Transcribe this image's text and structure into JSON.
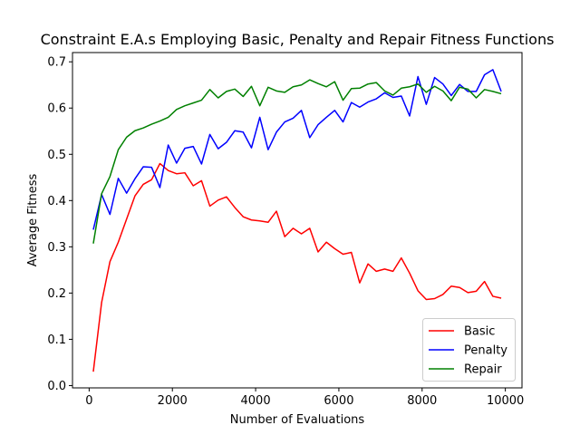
{
  "chart_data": {
    "type": "line",
    "title": "Constraint E.A.s Employing  Basic, Penalty and Repair Fitness Functions",
    "xlabel": "Number of Evaluations",
    "ylabel": "Average Fitness",
    "xlim": [
      -400,
      10400
    ],
    "ylim": [
      -0.005,
      0.72
    ],
    "xticks": [
      0,
      2000,
      4000,
      6000,
      8000,
      10000
    ],
    "xtick_labels": [
      "0",
      "2000",
      "4000",
      "6000",
      "8000",
      "10000"
    ],
    "yticks": [
      0.0,
      0.1,
      0.2,
      0.3,
      0.4,
      0.5,
      0.6,
      0.7
    ],
    "ytick_labels": [
      "0.0",
      "0.1",
      "0.2",
      "0.3",
      "0.4",
      "0.5",
      "0.6",
      "0.7"
    ],
    "grid": false,
    "legend_position": "bottom-right",
    "x": [
      100,
      300,
      500,
      700,
      900,
      1100,
      1300,
      1500,
      1700,
      1900,
      2100,
      2300,
      2500,
      2700,
      2900,
      3100,
      3300,
      3500,
      3700,
      3900,
      4100,
      4300,
      4500,
      4700,
      4900,
      5100,
      5300,
      5500,
      5700,
      5900,
      6100,
      6300,
      6500,
      6700,
      6900,
      7100,
      7300,
      7500,
      7700,
      7900,
      8100,
      8300,
      8500,
      8700,
      8900,
      9100,
      9300,
      9500,
      9700,
      9900
    ],
    "series": [
      {
        "name": "Basic",
        "color": "#ff0000",
        "values": [
          0.03,
          0.18,
          0.268,
          0.31,
          0.36,
          0.41,
          0.435,
          0.445,
          0.48,
          0.465,
          0.458,
          0.46,
          0.432,
          0.443,
          0.388,
          0.401,
          0.408,
          0.385,
          0.365,
          0.358,
          0.356,
          0.353,
          0.377,
          0.322,
          0.34,
          0.328,
          0.34,
          0.289,
          0.31,
          0.296,
          0.284,
          0.288,
          0.222,
          0.263,
          0.247,
          0.252,
          0.247,
          0.276,
          0.243,
          0.205,
          0.186,
          0.188,
          0.197,
          0.215,
          0.212,
          0.201,
          0.204,
          0.225,
          0.193,
          0.189
        ]
      },
      {
        "name": "Penalty",
        "color": "#0000ff",
        "values": [
          0.337,
          0.413,
          0.37,
          0.448,
          0.416,
          0.447,
          0.473,
          0.472,
          0.428,
          0.52,
          0.481,
          0.513,
          0.517,
          0.479,
          0.543,
          0.512,
          0.526,
          0.551,
          0.548,
          0.514,
          0.58,
          0.51,
          0.548,
          0.57,
          0.578,
          0.595,
          0.536,
          0.564,
          0.58,
          0.595,
          0.57,
          0.612,
          0.602,
          0.613,
          0.62,
          0.633,
          0.623,
          0.626,
          0.583,
          0.668,
          0.608,
          0.666,
          0.652,
          0.627,
          0.651,
          0.636,
          0.636,
          0.672,
          0.683,
          0.636
        ]
      },
      {
        "name": "Repair",
        "color": "#008000",
        "values": [
          0.307,
          0.415,
          0.452,
          0.51,
          0.537,
          0.551,
          0.557,
          0.565,
          0.572,
          0.58,
          0.597,
          0.605,
          0.611,
          0.617,
          0.64,
          0.622,
          0.636,
          0.641,
          0.625,
          0.647,
          0.605,
          0.645,
          0.637,
          0.634,
          0.646,
          0.65,
          0.661,
          0.653,
          0.646,
          0.657,
          0.617,
          0.642,
          0.643,
          0.652,
          0.655,
          0.637,
          0.628,
          0.643,
          0.646,
          0.652,
          0.634,
          0.647,
          0.637,
          0.616,
          0.645,
          0.641,
          0.622,
          0.64,
          0.636,
          0.631
        ]
      }
    ]
  }
}
